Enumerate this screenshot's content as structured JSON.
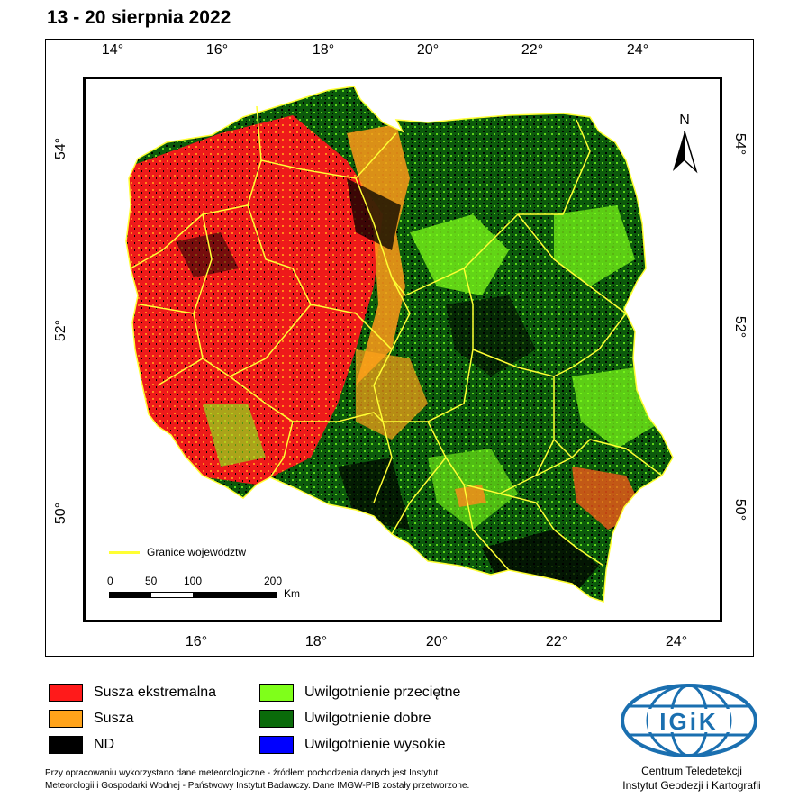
{
  "title": "13 - 20 sierpnia 2022",
  "top_ticks": [
    "14°",
    "16°",
    "18°",
    "20°",
    "22°",
    "24°"
  ],
  "bottom_ticks": [
    "16°",
    "18°",
    "20°",
    "22°",
    "24°"
  ],
  "left_ticks": [
    "54°",
    "52°",
    "50°"
  ],
  "right_ticks": [
    "54°",
    "52°",
    "50°"
  ],
  "north_label": "N",
  "boundary_legend": "Granice województw",
  "scale": {
    "labels": [
      "0",
      "50",
      "100",
      "200"
    ],
    "unit": "Km"
  },
  "legend": [
    {
      "label": "Susza ekstremalna",
      "color": "#ff1a1a"
    },
    {
      "label": "Susza",
      "color": "#ffa31a"
    },
    {
      "label": "ND",
      "color": "#000000"
    },
    {
      "label": "Uwilgotnienie przeciętne",
      "color": "#7fff1a"
    },
    {
      "label": "Uwilgotnienie dobre",
      "color": "#0a6b0a"
    },
    {
      "label": "Uwilgotnienie wysokie",
      "color": "#0000ff"
    }
  ],
  "colors": {
    "boundary": "#ffff33"
  },
  "logo_text": "IGiK",
  "footnote": {
    "line1": "Przy opracowaniu wykorzystano dane meteorologiczne - źródłem pochodzenia danych jest Instytut",
    "line2": "Meteorologii i Gospodarki Wodnej - Państwowy Instytut Badawczy. Dane IMGW-PIB zostały przetworzone."
  },
  "organization": {
    "line1": "Centrum Teledetekcji",
    "line2": "Instytut Geodezji i Kartografii"
  }
}
